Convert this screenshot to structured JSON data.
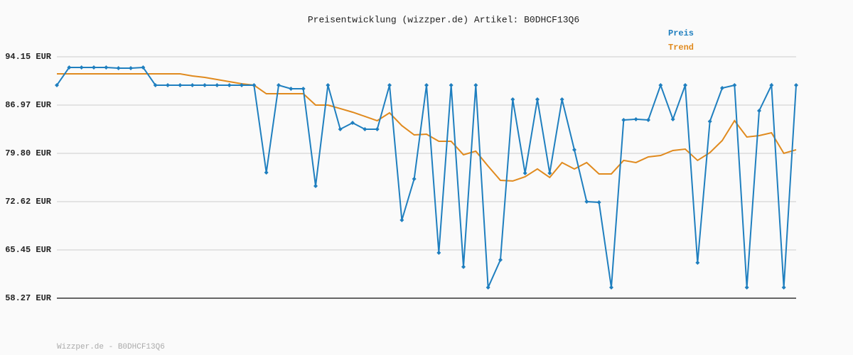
{
  "chart_data": {
    "type": "line",
    "title": "Preisentwicklung (wizzper.de) Artikel: B0DHCF13Q6",
    "footer": "Wizzper.de - B0DHCF13Q6",
    "ylim": [
      58.27,
      94.15
    ],
    "yticks": [
      {
        "value": 58.27,
        "label": "58.27 EUR"
      },
      {
        "value": 65.45,
        "label": "65.45 EUR"
      },
      {
        "value": 72.62,
        "label": "72.62 EUR"
      },
      {
        "value": 79.8,
        "label": "79.80 EUR"
      },
      {
        "value": 86.97,
        "label": "86.97 EUR"
      },
      {
        "value": 94.15,
        "label": "94.15 EUR"
      }
    ],
    "grid": true,
    "legend": "top-right",
    "series": [
      {
        "name": "Preis",
        "color": "#1f7fbf",
        "markers": true,
        "values": [
          89.93,
          92.57,
          92.57,
          92.57,
          92.57,
          92.46,
          92.46,
          92.57,
          89.93,
          89.93,
          89.93,
          89.93,
          89.93,
          89.93,
          89.93,
          89.93,
          89.93,
          76.95,
          89.93,
          89.4,
          89.4,
          74.95,
          89.93,
          83.39,
          84.34,
          83.39,
          83.39,
          89.93,
          69.88,
          76.0,
          89.93,
          65.03,
          89.93,
          62.92,
          89.93,
          59.86,
          63.97,
          87.82,
          76.85,
          87.82,
          76.85,
          87.82,
          80.33,
          72.62,
          72.52,
          59.86,
          84.76,
          84.87,
          84.76,
          89.93,
          84.87,
          89.93,
          63.55,
          84.55,
          89.51,
          89.93,
          59.86,
          86.13,
          89.93,
          59.86,
          89.93
        ]
      },
      {
        "name": "Trend",
        "color": "#e08a1e",
        "markers": false,
        "values": [
          91.62,
          91.62,
          91.62,
          91.62,
          91.62,
          91.62,
          91.62,
          91.62,
          91.62,
          91.62,
          91.62,
          91.3,
          91.09,
          90.77,
          90.46,
          90.14,
          89.93,
          88.66,
          88.66,
          88.66,
          88.66,
          86.97,
          86.97,
          86.45,
          85.92,
          85.29,
          84.65,
          85.82,
          83.92,
          82.54,
          82.65,
          81.59,
          81.59,
          79.59,
          80.12,
          77.9,
          75.79,
          75.69,
          76.32,
          77.48,
          76.22,
          78.43,
          77.48,
          78.43,
          76.74,
          76.74,
          78.75,
          78.43,
          79.27,
          79.48,
          80.22,
          80.43,
          78.75,
          79.91,
          81.7,
          84.65,
          82.23,
          82.44,
          82.86,
          79.8,
          80.33
        ]
      }
    ]
  }
}
